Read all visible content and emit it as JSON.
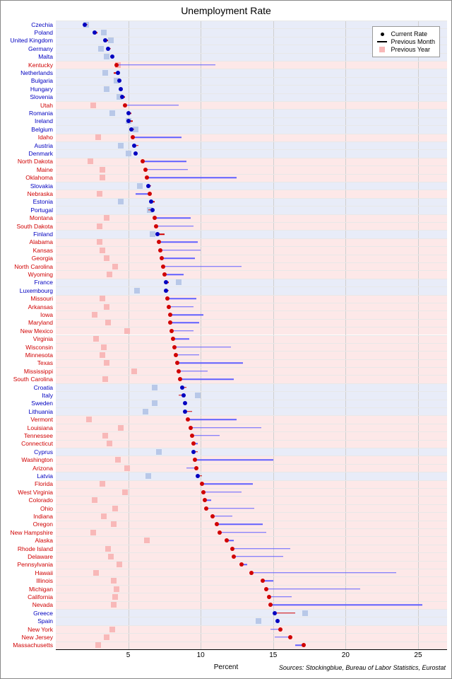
{
  "chart": {
    "title": "Unemployment Rate",
    "x_label": "Percent",
    "sources": "Sources: Stockingblue, Bureau of Labor Statistics, Eurostat",
    "title_fontsize": 14,
    "label_fontsize": 10,
    "tick_fontsize": 10,
    "y_label_fontsize": 8.5,
    "xlim": [
      0,
      27
    ],
    "xticks": [
      5,
      10,
      15,
      20,
      25
    ],
    "background_color": "#ffffff",
    "grid_color": "#d0d0d0",
    "row_line_color": "#e8e8e8",
    "colors": {
      "us_state": "#d00000",
      "eu_country": "#0000c0",
      "us_bg": "#fde8e8",
      "eu_bg": "#e8ecf8",
      "prev_year_us": "#f8b8b8",
      "prev_year_eu": "#b8c8e8",
      "dot_us": "#d00000",
      "dot_eu": "#0000c0",
      "line_us": "#6060ff",
      "line_eu": "#d00000"
    },
    "legend": {
      "current": "Current Rate",
      "prev_month": "Previous Month",
      "prev_year": "Previous Year",
      "dot_color": "#000000",
      "line_color": "#000000",
      "sq_color": "#f8b8b8"
    },
    "data": [
      {
        "name": "Czechia",
        "type": "eu",
        "current": 2.0,
        "prev_month": 2.2,
        "prev_year": 2.1
      },
      {
        "name": "Poland",
        "type": "eu",
        "current": 2.7,
        "prev_month": 2.9,
        "prev_year": 3.3
      },
      {
        "name": "United Kingdom",
        "type": "eu",
        "current": 3.4,
        "prev_month": 3.6,
        "prev_year": 3.8
      },
      {
        "name": "Germany",
        "type": "eu",
        "current": 3.6,
        "prev_month": 3.8,
        "prev_year": 3.1
      },
      {
        "name": "Malta",
        "type": "eu",
        "current": 3.9,
        "prev_month": 4.0,
        "prev_year": 3.5
      },
      {
        "name": "Kentucky",
        "type": "us",
        "current": 4.2,
        "prev_month": 11.0,
        "prev_year": 4.3
      },
      {
        "name": "Netherlands",
        "type": "eu",
        "current": 4.3,
        "prev_month": 4.0,
        "prev_year": 3.4
      },
      {
        "name": "Bulgaria",
        "type": "eu",
        "current": 4.4,
        "prev_month": 4.5,
        "prev_year": 4.2
      },
      {
        "name": "Hungary",
        "type": "eu",
        "current": 4.5,
        "prev_month": 4.6,
        "prev_year": 3.5
      },
      {
        "name": "Slovenia",
        "type": "eu",
        "current": 4.6,
        "prev_month": 4.8,
        "prev_year": 4.4
      },
      {
        "name": "Utah",
        "type": "us",
        "current": 4.8,
        "prev_month": 8.5,
        "prev_year": 2.6
      },
      {
        "name": "Romania",
        "type": "eu",
        "current": 5.0,
        "prev_month": 5.2,
        "prev_year": 3.9
      },
      {
        "name": "Ireland",
        "type": "eu",
        "current": 5.0,
        "prev_month": 5.3,
        "prev_year": 5.0
      },
      {
        "name": "Belgium",
        "type": "eu",
        "current": 5.2,
        "prev_month": 5.4,
        "prev_year": 5.5
      },
      {
        "name": "Idaho",
        "type": "us",
        "current": 5.3,
        "prev_month": 8.7,
        "prev_year": 2.9
      },
      {
        "name": "Austria",
        "type": "eu",
        "current": 5.4,
        "prev_month": 5.7,
        "prev_year": 4.5
      },
      {
        "name": "Denmark",
        "type": "eu",
        "current": 5.5,
        "prev_month": 5.5,
        "prev_year": 5.0
      },
      {
        "name": "North Dakota",
        "type": "us",
        "current": 6.0,
        "prev_month": 9.0,
        "prev_year": 2.4
      },
      {
        "name": "Maine",
        "type": "us",
        "current": 6.2,
        "prev_month": 9.1,
        "prev_year": 3.2
      },
      {
        "name": "Oklahoma",
        "type": "us",
        "current": 6.3,
        "prev_month": 12.5,
        "prev_year": 3.2
      },
      {
        "name": "Slovakia",
        "type": "eu",
        "current": 6.4,
        "prev_month": 6.6,
        "prev_year": 5.8
      },
      {
        "name": "Nebraska",
        "type": "us",
        "current": 6.5,
        "prev_month": 5.5,
        "prev_year": 3.0
      },
      {
        "name": "Estonia",
        "type": "eu",
        "current": 6.6,
        "prev_month": 6.8,
        "prev_year": 4.5
      },
      {
        "name": "Portugal",
        "type": "eu",
        "current": 6.7,
        "prev_month": 6.4,
        "prev_year": 6.5
      },
      {
        "name": "Montana",
        "type": "us",
        "current": 6.8,
        "prev_month": 9.3,
        "prev_year": 3.5
      },
      {
        "name": "South Dakota",
        "type": "us",
        "current": 6.9,
        "prev_month": 9.5,
        "prev_year": 3.0
      },
      {
        "name": "Finland",
        "type": "eu",
        "current": 7.0,
        "prev_month": 7.5,
        "prev_year": 6.7
      },
      {
        "name": "Alabama",
        "type": "us",
        "current": 7.1,
        "prev_month": 9.8,
        "prev_year": 3.0
      },
      {
        "name": "Kansas",
        "type": "us",
        "current": 7.2,
        "prev_month": 10.0,
        "prev_year": 3.2
      },
      {
        "name": "Georgia",
        "type": "us",
        "current": 7.3,
        "prev_month": 9.6,
        "prev_year": 3.5
      },
      {
        "name": "North Carolina",
        "type": "us",
        "current": 7.4,
        "prev_month": 12.8,
        "prev_year": 4.1
      },
      {
        "name": "Wyoming",
        "type": "us",
        "current": 7.5,
        "prev_month": 8.8,
        "prev_year": 3.7
      },
      {
        "name": "France",
        "type": "eu",
        "current": 7.6,
        "prev_month": 7.8,
        "prev_year": 8.5
      },
      {
        "name": "Luxembourg",
        "type": "eu",
        "current": 7.6,
        "prev_month": 7.8,
        "prev_year": 5.6
      },
      {
        "name": "Missouri",
        "type": "us",
        "current": 7.7,
        "prev_month": 9.7,
        "prev_year": 3.2
      },
      {
        "name": "Arkansas",
        "type": "us",
        "current": 7.8,
        "prev_month": 9.5,
        "prev_year": 3.5
      },
      {
        "name": "Iowa",
        "type": "us",
        "current": 7.9,
        "prev_month": 10.2,
        "prev_year": 2.7
      },
      {
        "name": "Maryland",
        "type": "us",
        "current": 7.9,
        "prev_month": 9.9,
        "prev_year": 3.6
      },
      {
        "name": "New Mexico",
        "type": "us",
        "current": 8.0,
        "prev_month": 9.5,
        "prev_year": 4.9
      },
      {
        "name": "Virginia",
        "type": "us",
        "current": 8.1,
        "prev_month": 9.2,
        "prev_year": 2.8
      },
      {
        "name": "Wisconsin",
        "type": "us",
        "current": 8.2,
        "prev_month": 12.1,
        "prev_year": 3.3
      },
      {
        "name": "Minnesota",
        "type": "us",
        "current": 8.3,
        "prev_month": 9.9,
        "prev_year": 3.2
      },
      {
        "name": "Texas",
        "type": "us",
        "current": 8.4,
        "prev_month": 12.9,
        "prev_year": 3.5
      },
      {
        "name": "Mississippi",
        "type": "us",
        "current": 8.5,
        "prev_month": 10.5,
        "prev_year": 5.4
      },
      {
        "name": "South Carolina",
        "type": "us",
        "current": 8.6,
        "prev_month": 12.3,
        "prev_year": 3.4
      },
      {
        "name": "Croatia",
        "type": "eu",
        "current": 8.7,
        "prev_month": 9.0,
        "prev_year": 6.8
      },
      {
        "name": "Italy",
        "type": "eu",
        "current": 8.8,
        "prev_month": 8.5,
        "prev_year": 9.8
      },
      {
        "name": "Sweden",
        "type": "eu",
        "current": 8.9,
        "prev_month": 9.0,
        "prev_year": 6.8
      },
      {
        "name": "Lithuania",
        "type": "eu",
        "current": 8.9,
        "prev_month": 9.4,
        "prev_year": 6.2
      },
      {
        "name": "Vermont",
        "type": "us",
        "current": 9.1,
        "prev_month": 12.5,
        "prev_year": 2.3
      },
      {
        "name": "Louisiana",
        "type": "us",
        "current": 9.3,
        "prev_month": 14.2,
        "prev_year": 4.5
      },
      {
        "name": "Tennessee",
        "type": "us",
        "current": 9.4,
        "prev_month": 11.3,
        "prev_year": 3.4
      },
      {
        "name": "Connecticut",
        "type": "us",
        "current": 9.5,
        "prev_month": 9.8,
        "prev_year": 3.7
      },
      {
        "name": "Cyprus",
        "type": "eu",
        "current": 9.5,
        "prev_month": 9.8,
        "prev_year": 7.1
      },
      {
        "name": "Washington",
        "type": "us",
        "current": 9.6,
        "prev_month": 15.0,
        "prev_year": 4.3
      },
      {
        "name": "Arizona",
        "type": "us",
        "current": 9.7,
        "prev_month": 9.0,
        "prev_year": 4.9
      },
      {
        "name": "Latvia",
        "type": "eu",
        "current": 9.8,
        "prev_month": 10.1,
        "prev_year": 6.4
      },
      {
        "name": "Florida",
        "type": "us",
        "current": 10.1,
        "prev_month": 13.6,
        "prev_year": 3.2
      },
      {
        "name": "West Virginia",
        "type": "us",
        "current": 10.2,
        "prev_month": 12.8,
        "prev_year": 4.8
      },
      {
        "name": "Colorado",
        "type": "us",
        "current": 10.3,
        "prev_month": 10.7,
        "prev_year": 2.7
      },
      {
        "name": "Ohio",
        "type": "us",
        "current": 10.4,
        "prev_month": 13.7,
        "prev_year": 4.1
      },
      {
        "name": "Indiana",
        "type": "us",
        "current": 10.8,
        "prev_month": 12.2,
        "prev_year": 3.3
      },
      {
        "name": "Oregon",
        "type": "us",
        "current": 11.1,
        "prev_month": 14.3,
        "prev_year": 4.0
      },
      {
        "name": "New Hampshire",
        "type": "us",
        "current": 11.3,
        "prev_month": 14.5,
        "prev_year": 2.6
      },
      {
        "name": "Alaska",
        "type": "us",
        "current": 11.8,
        "prev_month": 12.3,
        "prev_year": 6.3
      },
      {
        "name": "Rhode Island",
        "type": "us",
        "current": 12.2,
        "prev_month": 16.2,
        "prev_year": 3.6
      },
      {
        "name": "Delaware",
        "type": "us",
        "current": 12.3,
        "prev_month": 15.7,
        "prev_year": 3.8
      },
      {
        "name": "Pennsylvania",
        "type": "us",
        "current": 12.8,
        "prev_month": 13.2,
        "prev_year": 4.4
      },
      {
        "name": "Hawaii",
        "type": "us",
        "current": 13.5,
        "prev_month": 23.5,
        "prev_year": 2.8
      },
      {
        "name": "Illinois",
        "type": "us",
        "current": 14.3,
        "prev_month": 15.0,
        "prev_year": 4.0
      },
      {
        "name": "Michigan",
        "type": "us",
        "current": 14.5,
        "prev_month": 21.0,
        "prev_year": 4.2
      },
      {
        "name": "California",
        "type": "us",
        "current": 14.7,
        "prev_month": 16.3,
        "prev_year": 4.1
      },
      {
        "name": "Nevada",
        "type": "us",
        "current": 14.8,
        "prev_month": 25.3,
        "prev_year": 4.0
      },
      {
        "name": "Greece",
        "type": "eu",
        "current": 15.1,
        "prev_month": 16.5,
        "prev_year": 17.2
      },
      {
        "name": "Spain",
        "type": "eu",
        "current": 15.3,
        "prev_month": 15.4,
        "prev_year": 14.0
      },
      {
        "name": "New York",
        "type": "us",
        "current": 15.5,
        "prev_month": 14.8,
        "prev_year": 3.9
      },
      {
        "name": "New Jersey",
        "type": "us",
        "current": 16.2,
        "prev_month": 15.1,
        "prev_year": 3.5
      },
      {
        "name": "Massachusetts",
        "type": "us",
        "current": 17.1,
        "prev_month": 16.5,
        "prev_year": 2.9
      }
    ]
  }
}
